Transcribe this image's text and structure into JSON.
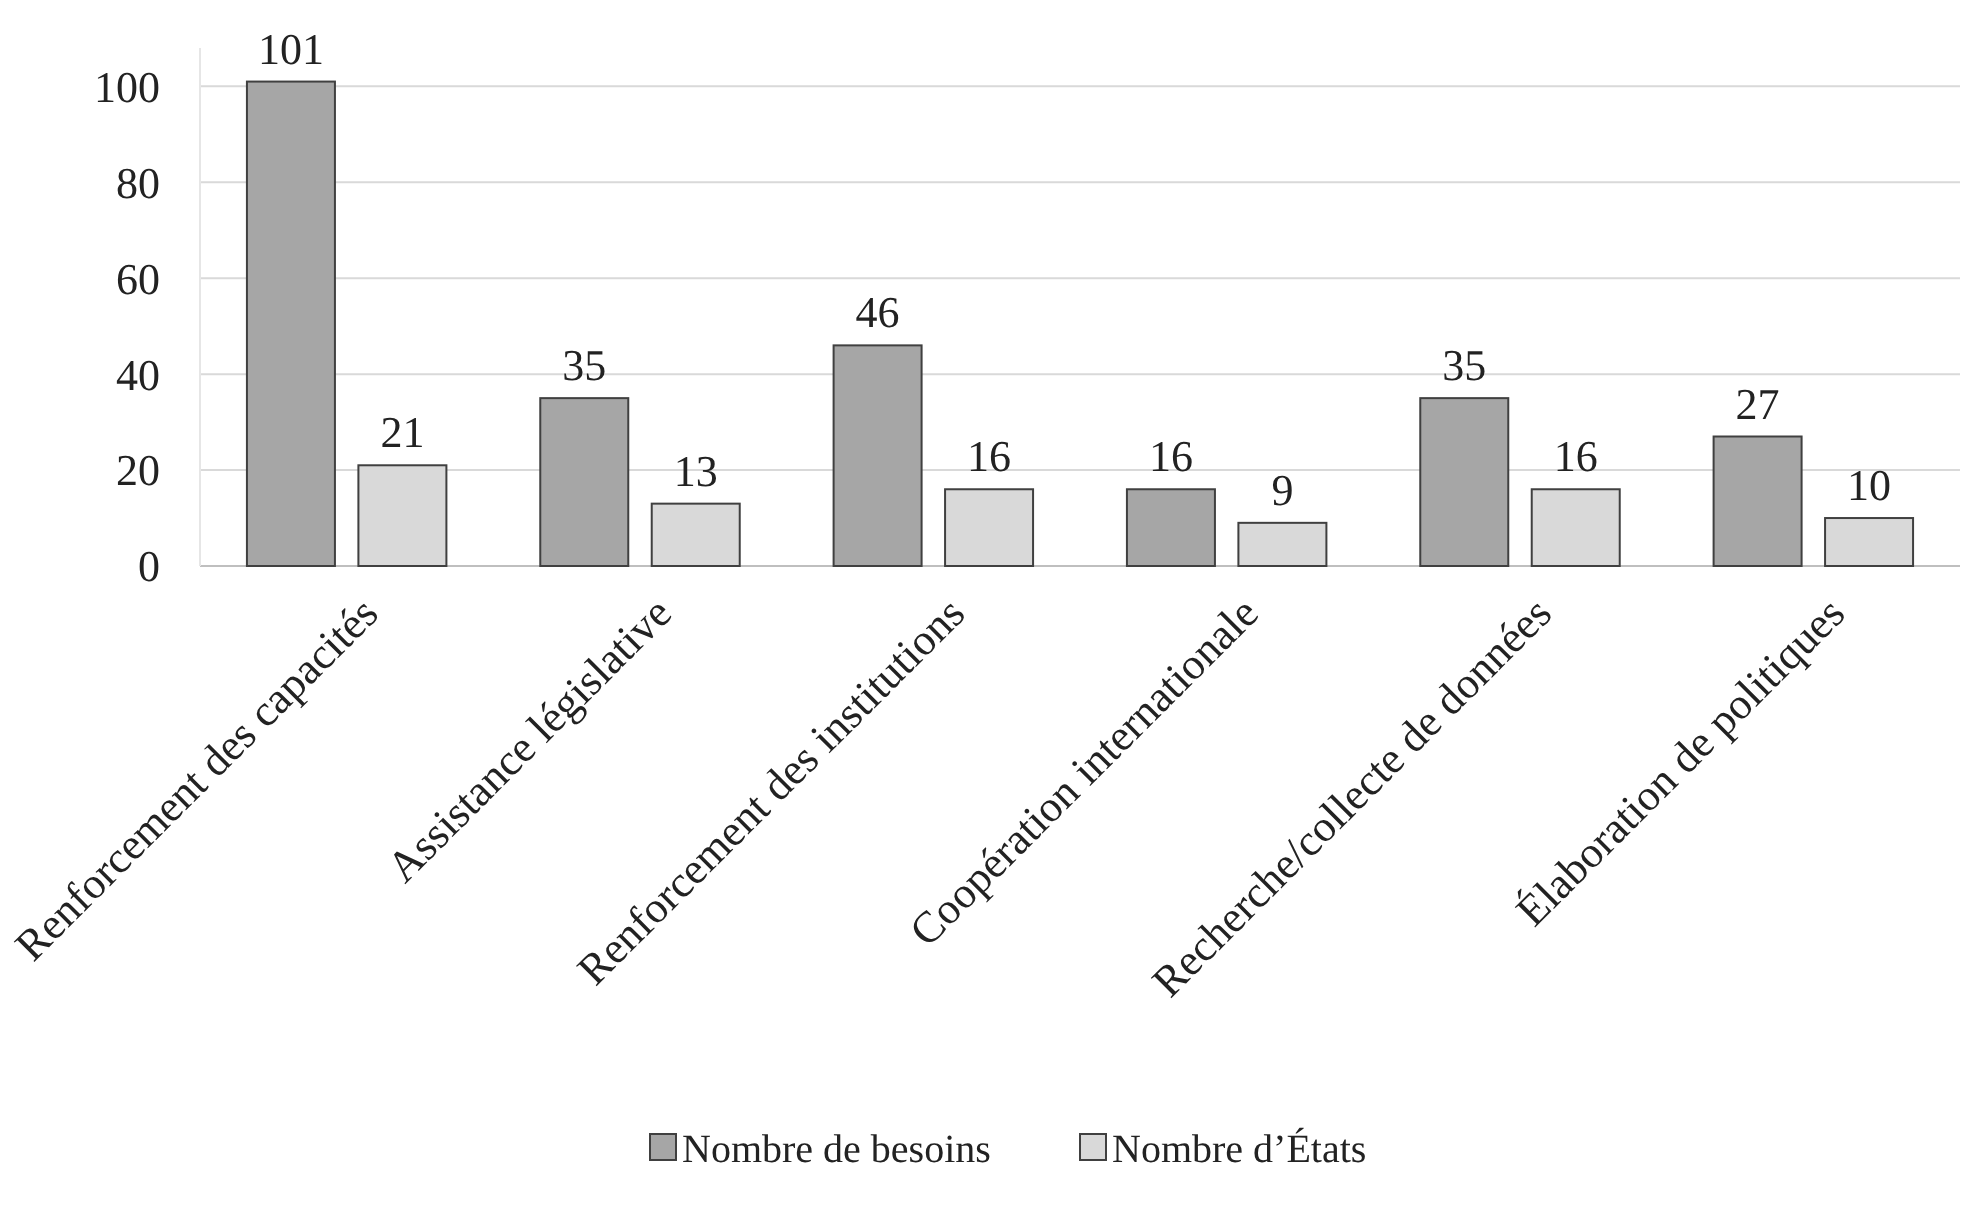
{
  "chart_data": {
    "type": "bar",
    "categories": [
      "Renforcement des capacités",
      "Assistance législative",
      "Renforcement des institutions",
      "Coopération internationale",
      "Recherche/collecte de données",
      "Élaboration de politiques"
    ],
    "series": [
      {
        "name": "Nombre de besoins",
        "color": "#a6a6a6",
        "values": [
          101,
          35,
          46,
          16,
          35,
          27
        ]
      },
      {
        "name": "Nombre d’États",
        "color": "#d9d9d9",
        "values": [
          21,
          13,
          16,
          9,
          16,
          10
        ]
      }
    ],
    "ylim": [
      0,
      108
    ],
    "yticks": [
      0,
      20,
      40,
      60,
      80,
      100
    ],
    "grid": "y",
    "legend": "bottom",
    "data_labels": true
  }
}
